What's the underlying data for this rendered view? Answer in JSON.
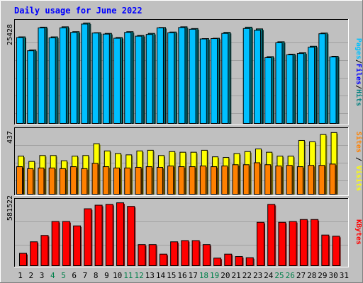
{
  "chart_data": [
    {
      "type": "bar",
      "title": "Daily usage for June 2022",
      "ylabel_parts": [
        {
          "text": "Pages",
          "color": "#00c0ff"
        },
        {
          "text": "/",
          "color": "#000000"
        },
        {
          "text": "Files",
          "color": "#0000ff"
        },
        {
          "text": "/",
          "color": "#000000"
        },
        {
          "text": "Hits",
          "color": "#008080"
        }
      ],
      "ytick": "25428",
      "ymax": 29000,
      "categories": [
        "1",
        "2",
        "3",
        "4",
        "5",
        "6",
        "7",
        "8",
        "9",
        "10",
        "11",
        "12",
        "13",
        "14",
        "15",
        "16",
        "17",
        "18",
        "19",
        "20",
        "21",
        "22",
        "23",
        "24",
        "25",
        "26",
        "27",
        "28",
        "29",
        "30",
        "31"
      ],
      "weekend_days": [
        "4",
        "5",
        "11",
        "12",
        "18",
        "19",
        "25",
        "26"
      ],
      "series": [
        {
          "name": "Hits",
          "color": "#008080",
          "values": [
            25000,
            21200,
            27800,
            25000,
            27900,
            26500,
            29000,
            26200,
            26000,
            24800,
            26500,
            25400,
            26000,
            27700,
            26400,
            27900,
            27400,
            24500,
            24600,
            26300,
            null,
            27800,
            27300,
            19300,
            23600,
            20000,
            20400,
            22300,
            26100,
            19400,
            null
          ]
        },
        {
          "name": "Files",
          "color": "#0000ff",
          "values": [
            11300,
            6200,
            11300,
            8100,
            11000,
            11400,
            11600,
            8700,
            10900,
            6600,
            11300,
            8800,
            11500,
            6300,
            10300,
            8300,
            11700,
            6700,
            9300,
            11100,
            null,
            4000,
            10200,
            7000,
            6200,
            5600,
            3500,
            8200,
            6400,
            3800,
            null
          ]
        },
        {
          "name": "Pages",
          "color": "#00c0ff",
          "values": [
            24800,
            21000,
            27600,
            24700,
            27600,
            26300,
            28700,
            26100,
            25800,
            24600,
            26300,
            25200,
            25700,
            27600,
            26200,
            27700,
            27200,
            24400,
            24500,
            26000,
            null,
            27400,
            26900,
            19000,
            23300,
            19800,
            20200,
            22000,
            25900,
            19200,
            null
          ]
        }
      ]
    },
    {
      "type": "bar",
      "ylabel_parts": [
        {
          "text": "Sites",
          "color": "#ff8000"
        },
        {
          "text": " / ",
          "color": "#000000"
        },
        {
          "text": "Visits",
          "color": "#ffff00"
        }
      ],
      "ytick": "437",
      "ymax": 480,
      "categories": [
        "1",
        "2",
        "3",
        "4",
        "5",
        "6",
        "7",
        "8",
        "9",
        "10",
        "11",
        "12",
        "13",
        "14",
        "15",
        "16",
        "17",
        "18",
        "19",
        "20",
        "21",
        "22",
        "23",
        "24",
        "25",
        "26",
        "27",
        "28",
        "29",
        "30",
        "31"
      ],
      "series": [
        {
          "name": "Visits",
          "color": "#ffff00",
          "values": [
            290,
            250,
            295,
            295,
            255,
            290,
            295,
            385,
            330,
            310,
            300,
            330,
            335,
            295,
            325,
            320,
            320,
            335,
            285,
            280,
            310,
            325,
            345,
            320,
            290,
            290,
            410,
            400,
            455,
            470,
            null
          ]
        },
        {
          "name": "Sites",
          "color": "#ff8000",
          "values": [
            210,
            195,
            200,
            200,
            195,
            210,
            195,
            235,
            210,
            200,
            200,
            205,
            210,
            205,
            215,
            210,
            210,
            215,
            210,
            215,
            225,
            225,
            240,
            225,
            215,
            220,
            210,
            220,
            220,
            230,
            null
          ]
        }
      ]
    },
    {
      "type": "bar",
      "ylabel_parts": [
        {
          "text": "KBytes",
          "color": "#ff0000"
        }
      ],
      "ytick": "581522",
      "ymax": 800000,
      "categories": [
        "1",
        "2",
        "3",
        "4",
        "5",
        "6",
        "7",
        "8",
        "9",
        "10",
        "11",
        "12",
        "13",
        "14",
        "15",
        "16",
        "17",
        "18",
        "19",
        "20",
        "21",
        "22",
        "23",
        "24",
        "25",
        "26",
        "27",
        "28",
        "29",
        "30",
        "31"
      ],
      "series": [
        {
          "name": "KBytes",
          "color": "#ff0000",
          "values": [
            155000,
            300000,
            380000,
            555000,
            555000,
            500000,
            715000,
            760000,
            770000,
            790000,
            745000,
            265000,
            265000,
            145000,
            300000,
            315000,
            315000,
            265000,
            95000,
            145000,
            115000,
            100000,
            545000,
            770000,
            545000,
            555000,
            580000,
            580000,
            385000,
            370000,
            null
          ]
        }
      ]
    }
  ]
}
